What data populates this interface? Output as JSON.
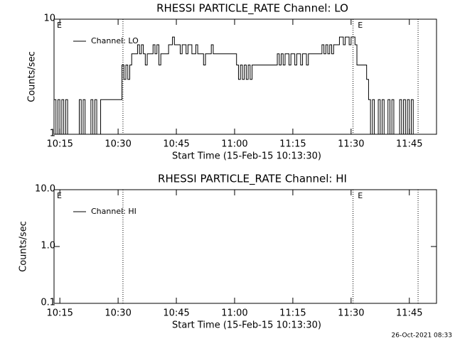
{
  "chart_data": [
    {
      "type": "line",
      "step": true,
      "title": "RHESSI PARTICLE_RATE Channel: LO",
      "xlabel": "Start Time (15-Feb-15 10:13:30)",
      "ylabel": "Counts/sec",
      "log_y": true,
      "legend": "top-left",
      "xlim": [
        "10:13:30",
        "11:52:00"
      ],
      "xticks": [
        "10:15",
        "10:30",
        "10:45",
        "11:00",
        "11:15",
        "11:30",
        "11:45"
      ],
      "ylim": [
        1,
        10
      ],
      "yticks": [
        1,
        10
      ],
      "vlines": [
        "10:31:15",
        "11:30:30",
        "11:47:15"
      ],
      "annotations": [
        {
          "text": "E",
          "x": "10:13:30"
        },
        {
          "text": "E",
          "x": "11:31:00"
        }
      ],
      "series": [
        {
          "name": "Channel: LO",
          "color": "#000000",
          "x": [
            "10:13:30",
            "10:14:00",
            "10:14:30",
            "10:15:00",
            "10:15:30",
            "10:16:00",
            "10:16:30",
            "10:17:00",
            "10:20:00",
            "10:20:30",
            "10:21:00",
            "10:21:30",
            "10:23:00",
            "10:23:30",
            "10:24:00",
            "10:24:30",
            "10:25:30",
            "10:31:00",
            "10:31:30",
            "10:32:00",
            "10:32:30",
            "10:33:00",
            "10:33:30",
            "10:35:00",
            "10:35:30",
            "10:36:00",
            "10:36:30",
            "10:37:00",
            "10:37:30",
            "10:39:00",
            "10:39:30",
            "10:40:00",
            "10:40:30",
            "10:41:00",
            "10:43:00",
            "10:44:00",
            "10:44:30",
            "10:46:00",
            "10:46:30",
            "10:47:30",
            "10:48:00",
            "10:49:00",
            "10:50:00",
            "10:50:30",
            "10:52:00",
            "10:52:30",
            "10:54:00",
            "10:54:30",
            "11:00:30",
            "11:01:00",
            "11:01:30",
            "11:02:00",
            "11:02:30",
            "11:03:00",
            "11:03:30",
            "11:04:00",
            "11:04:30",
            "11:11:00",
            "11:11:30",
            "11:12:00",
            "11:12:30",
            "11:13:00",
            "11:14:00",
            "11:14:30",
            "11:15:30",
            "11:16:00",
            "11:17:00",
            "11:17:30",
            "11:18:30",
            "11:19:00",
            "11:22:30",
            "11:23:00",
            "11:23:30",
            "11:24:00",
            "11:24:30",
            "11:25:00",
            "11:25:30",
            "11:27:00",
            "11:28:00",
            "11:28:30",
            "11:29:30",
            "11:30:00",
            "11:31:00",
            "11:31:30",
            "11:34:00",
            "11:34:30",
            "11:35:00",
            "11:35:30",
            "11:36:00",
            "11:37:00",
            "11:37:30",
            "11:38:00",
            "11:38:30",
            "11:39:30",
            "11:40:00",
            "11:40:30",
            "11:41:00",
            "11:42:30",
            "11:43:00",
            "11:43:30",
            "11:44:00",
            "11:44:30",
            "11:45:00",
            "11:45:30",
            "11:46:00"
          ],
          "values": [
            2,
            1,
            2,
            1,
            2,
            1,
            2,
            1,
            2,
            1,
            2,
            1,
            2,
            1,
            2,
            1,
            2,
            4,
            3,
            4,
            3,
            4,
            5,
            6,
            5,
            6,
            5,
            4,
            5,
            6,
            5,
            6,
            4,
            5,
            6,
            7,
            6,
            5,
            6,
            5,
            6,
            5,
            6,
            5,
            4,
            5,
            6,
            5,
            4,
            3,
            4,
            3,
            4,
            3,
            4,
            3,
            4,
            5,
            4,
            5,
            4,
            5,
            4,
            5,
            4,
            5,
            4,
            5,
            4,
            5,
            6,
            5,
            6,
            5,
            6,
            5,
            6,
            7,
            6,
            7,
            6,
            7,
            6,
            4,
            3,
            2,
            1,
            2,
            1,
            2,
            1,
            2,
            1,
            2,
            1,
            2,
            1,
            2,
            1,
            2,
            1,
            2,
            1,
            2,
            1
          ]
        }
      ]
    },
    {
      "type": "line",
      "step": true,
      "title": "RHESSI PARTICLE_RATE Channel: HI",
      "xlabel": "Start Time (15-Feb-15 10:13:30)",
      "ylabel": "Counts/sec",
      "log_y": true,
      "legend": "top-left",
      "xlim": [
        "10:13:30",
        "11:52:00"
      ],
      "xticks": [
        "10:15",
        "10:30",
        "10:45",
        "11:00",
        "11:15",
        "11:30",
        "11:45"
      ],
      "ylim": [
        0.1,
        10
      ],
      "yticks": [
        {
          "value": 0.1,
          "label": "0.1"
        },
        {
          "value": 1,
          "label": "1.0"
        },
        {
          "value": 10,
          "label": "10.0"
        }
      ],
      "vlines": [
        "10:31:15",
        "11:30:30",
        "11:47:15"
      ],
      "annotations": [
        {
          "text": "E",
          "x": "10:13:30"
        },
        {
          "text": "E",
          "x": "11:31:00"
        }
      ],
      "series": [
        {
          "name": "Channel: HI",
          "color": "#000000",
          "x": [],
          "values": []
        }
      ]
    }
  ],
  "footer": "26-Oct-2021 08:33"
}
